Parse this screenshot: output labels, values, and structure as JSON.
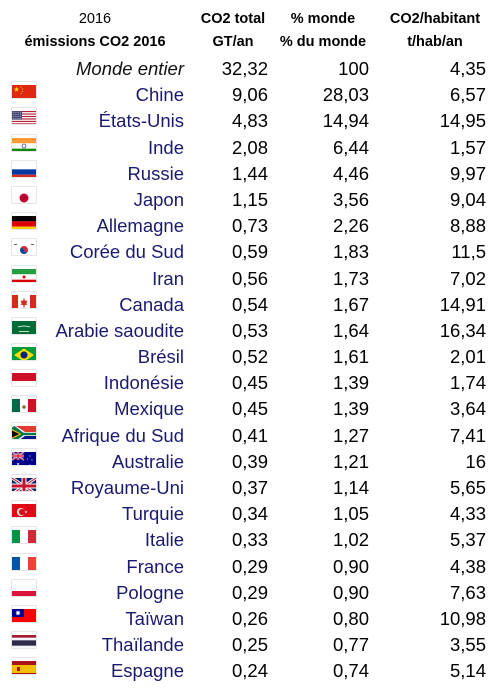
{
  "header": {
    "year": "2016",
    "subtitle": "émissions CO2 2016",
    "col1_line1": "CO2 total",
    "col1_line2": "GT/an",
    "col2_line1": "% monde",
    "col2_line2": "% du monde",
    "col3_line1": "CO2/habitant",
    "col3_line2": "t/hab/an"
  },
  "chart_data": {
    "type": "table",
    "title": "émissions CO2 2016",
    "columns": [
      "",
      "CO2 total GT/an",
      "% monde % du monde",
      "CO2/habitant t/hab/an"
    ],
    "rows": [
      {
        "name": "Monde entier",
        "flag": "none",
        "co2": "32,32",
        "pct": "100",
        "hab": "4,35"
      },
      {
        "name": "Chine",
        "flag": "china-flag",
        "co2": "9,06",
        "pct": "28,03",
        "hab": "6,57"
      },
      {
        "name": "États-Unis",
        "flag": "usa-flag",
        "co2": "4,83",
        "pct": "14,94",
        "hab": "14,95"
      },
      {
        "name": "Inde",
        "flag": "india-flag",
        "co2": "2,08",
        "pct": "6,44",
        "hab": "1,57"
      },
      {
        "name": "Russie",
        "flag": "russia-flag",
        "co2": "1,44",
        "pct": "4,46",
        "hab": "9,97"
      },
      {
        "name": "Japon",
        "flag": "japan-flag",
        "co2": "1,15",
        "pct": "3,56",
        "hab": "9,04"
      },
      {
        "name": "Allemagne",
        "flag": "germany-flag",
        "co2": "0,73",
        "pct": "2,26",
        "hab": "8,88"
      },
      {
        "name": "Corée du Sud",
        "flag": "south-korea-flag",
        "co2": "0,59",
        "pct": "1,83",
        "hab": "11,5"
      },
      {
        "name": "Iran",
        "flag": "iran-flag",
        "co2": "0,56",
        "pct": "1,73",
        "hab": "7,02"
      },
      {
        "name": "Canada",
        "flag": "canada-flag",
        "co2": "0,54",
        "pct": "1,67",
        "hab": "14,91"
      },
      {
        "name": "Arabie saoudite",
        "flag": "saudi-arabia-flag",
        "co2": "0,53",
        "pct": "1,64",
        "hab": "16,34"
      },
      {
        "name": "Brésil",
        "flag": "brazil-flag",
        "co2": "0,52",
        "pct": "1,61",
        "hab": "2,01"
      },
      {
        "name": "Indonésie",
        "flag": "indonesia-flag",
        "co2": "0,45",
        "pct": "1,39",
        "hab": "1,74"
      },
      {
        "name": "Mexique",
        "flag": "mexico-flag",
        "co2": "0,45",
        "pct": "1,39",
        "hab": "3,64"
      },
      {
        "name": "Afrique du Sud",
        "flag": "south-africa-flag",
        "co2": "0,41",
        "pct": "1,27",
        "hab": "7,41"
      },
      {
        "name": "Australie",
        "flag": "australia-flag",
        "co2": "0,39",
        "pct": "1,21",
        "hab": "16"
      },
      {
        "name": "Royaume-Uni",
        "flag": "uk-flag",
        "co2": "0,37",
        "pct": "1,14",
        "hab": "5,65"
      },
      {
        "name": "Turquie",
        "flag": "turkey-flag",
        "co2": "0,34",
        "pct": "1,05",
        "hab": "4,33"
      },
      {
        "name": "Italie",
        "flag": "italy-flag",
        "co2": "0,33",
        "pct": "1,02",
        "hab": "5,37"
      },
      {
        "name": "France",
        "flag": "france-flag",
        "co2": "0,29",
        "pct": "0,90",
        "hab": "4,38"
      },
      {
        "name": "Pologne",
        "flag": "poland-flag",
        "co2": "0,29",
        "pct": "0,90",
        "hab": "7,63"
      },
      {
        "name": "Taïwan",
        "flag": "taiwan-flag",
        "co2": "0,26",
        "pct": "0,80",
        "hab": "10,98"
      },
      {
        "name": "Thaïlande",
        "flag": "thailand-flag",
        "co2": "0,25",
        "pct": "0,77",
        "hab": "3,55"
      },
      {
        "name": "Espagne",
        "flag": "spain-flag",
        "co2": "0,24",
        "pct": "0,74",
        "hab": "5,14"
      }
    ]
  }
}
